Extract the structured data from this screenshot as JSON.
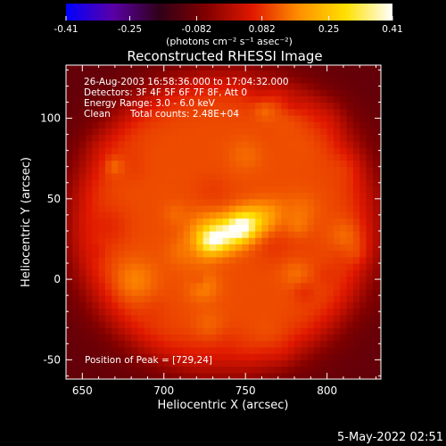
{
  "chart_data": {
    "type": "heatmap",
    "title": "Reconstructed RHESSI Image",
    "xlabel": "Heliocentric X (arcsec)",
    "ylabel": "Heliocentric Y (arcsec)",
    "xlim": [
      640,
      833
    ],
    "ylim": [
      -62,
      133
    ],
    "x_ticks": [
      650,
      700,
      750,
      800
    ],
    "y_ticks": [
      -50,
      0,
      50,
      100
    ],
    "colorbar": {
      "range": [
        -0.41,
        0.41
      ],
      "tick_values": [
        -0.41,
        -0.25,
        -0.082,
        0.082,
        0.25,
        0.41
      ],
      "tick_labels": [
        "-0.41",
        "-0.25",
        "-0.082",
        "0.082",
        "0.25",
        "0.41"
      ],
      "unit_label": "(photons cm⁻² s⁻¹ asec⁻²)",
      "colors": [
        "#0000ff",
        "#5a00a8",
        "#300018",
        "#800000",
        "#e01800",
        "#ff9000",
        "#ffe000",
        "#ffffff"
      ]
    },
    "annotations": [
      "26-Aug-2003 16:58:36.000 to 17:04:32.000",
      "Detectors: 3F 4F 5F 6F 7F 8F, Att 0",
      "Energy Range: 3.0 - 6.0 keV",
      "Clean",
      "Total counts: 2.48E+04"
    ],
    "peak_label": "Position of Peak = [729,24]",
    "peak": {
      "x": 729,
      "y": 24,
      "value": 0.41
    },
    "source": {
      "x_center": 742,
      "y_center": 30,
      "angle_deg": 25,
      "sigma_major": 16,
      "sigma_minor": 7
    },
    "disk": {
      "x_center": 737,
      "y_center": 35,
      "radius": 92
    },
    "timestamp": "5-May-2022 02:51"
  }
}
